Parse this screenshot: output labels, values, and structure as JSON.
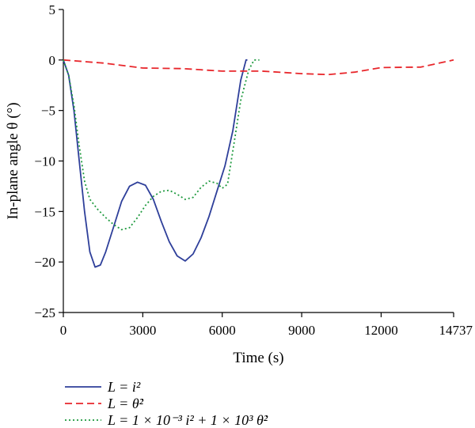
{
  "chart_data": {
    "type": "line",
    "xlabel": "Time (s)",
    "ylabel": "In-plane angle θ (°)",
    "xlim": [
      0,
      14737
    ],
    "ylim": [
      -25,
      5
    ],
    "x_ticks": [
      0,
      3000,
      6000,
      9000,
      12000,
      14737
    ],
    "x_tick_labels": [
      "0",
      "3000",
      "6000",
      "9000",
      "12000",
      "14737"
    ],
    "y_ticks": [
      5,
      0,
      -5,
      -10,
      -15,
      -20,
      -25
    ],
    "y_tick_labels": [
      "5",
      "0",
      "−5",
      "−10",
      "−15",
      "−20",
      "−25"
    ],
    "grid": false,
    "legend_position": "bottom-left",
    "series": [
      {
        "name": "L = i²",
        "color": "#2e3f9a",
        "dash": "solid",
        "points": [
          [
            0,
            0
          ],
          [
            200,
            -1.5
          ],
          [
            400,
            -5
          ],
          [
            600,
            -10
          ],
          [
            800,
            -15
          ],
          [
            1000,
            -19
          ],
          [
            1200,
            -20.5
          ],
          [
            1400,
            -20.3
          ],
          [
            1600,
            -19
          ],
          [
            1900,
            -16.5
          ],
          [
            2200,
            -14
          ],
          [
            2500,
            -12.5
          ],
          [
            2800,
            -12.1
          ],
          [
            3100,
            -12.4
          ],
          [
            3400,
            -13.8
          ],
          [
            3700,
            -16
          ],
          [
            4000,
            -18
          ],
          [
            4300,
            -19.4
          ],
          [
            4600,
            -19.9
          ],
          [
            4900,
            -19.2
          ],
          [
            5200,
            -17.6
          ],
          [
            5500,
            -15.5
          ],
          [
            5800,
            -13
          ],
          [
            6100,
            -10.5
          ],
          [
            6400,
            -7
          ],
          [
            6700,
            -2
          ],
          [
            6900,
            0
          ],
          [
            6950,
            0
          ]
        ]
      },
      {
        "name": "L = θ̇²",
        "color": "#e8262b",
        "dash": "dashed",
        "points": [
          [
            0,
            0
          ],
          [
            1500,
            -0.3
          ],
          [
            3000,
            -0.8
          ],
          [
            4500,
            -0.85
          ],
          [
            6000,
            -1.1
          ],
          [
            7500,
            -1.1
          ],
          [
            9000,
            -1.35
          ],
          [
            10000,
            -1.45
          ],
          [
            11000,
            -1.2
          ],
          [
            12000,
            -0.75
          ],
          [
            13500,
            -0.7
          ],
          [
            14737,
            0
          ]
        ]
      },
      {
        "name": "L = 1 × 10⁻³ i² + 1 × 10³ θ̇²",
        "color": "#1f9a3f",
        "dash": "dotted",
        "points": [
          [
            0,
            0
          ],
          [
            200,
            -1.5
          ],
          [
            400,
            -4.5
          ],
          [
            600,
            -8.5
          ],
          [
            800,
            -12
          ],
          [
            1000,
            -13.8
          ],
          [
            1300,
            -14.8
          ],
          [
            1600,
            -15.6
          ],
          [
            1900,
            -16.3
          ],
          [
            2200,
            -16.8
          ],
          [
            2500,
            -16.6
          ],
          [
            2800,
            -15.6
          ],
          [
            3100,
            -14.4
          ],
          [
            3400,
            -13.5
          ],
          [
            3700,
            -13
          ],
          [
            4000,
            -12.9
          ],
          [
            4300,
            -13.3
          ],
          [
            4600,
            -13.8
          ],
          [
            4900,
            -13.6
          ],
          [
            5200,
            -12.6
          ],
          [
            5500,
            -12
          ],
          [
            5800,
            -12.2
          ],
          [
            6000,
            -12.7
          ],
          [
            6200,
            -12.3
          ],
          [
            6400,
            -9
          ],
          [
            6700,
            -4
          ],
          [
            7000,
            -1
          ],
          [
            7200,
            0
          ],
          [
            7400,
            0
          ]
        ]
      }
    ],
    "legend": [
      {
        "label": "L = i²"
      },
      {
        "label": "L = θ̇²"
      },
      {
        "label": "L = 1 × 10⁻³ i² + 1 × 10³ θ̇²"
      }
    ]
  }
}
